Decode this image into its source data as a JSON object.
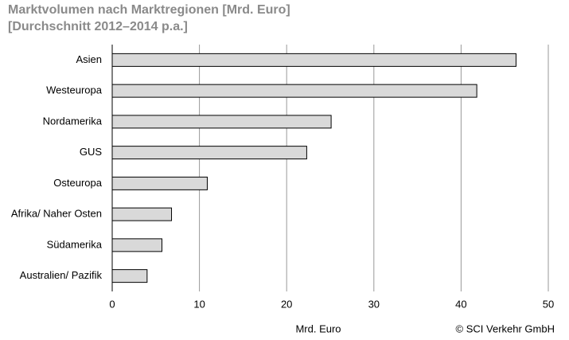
{
  "chart_data": {
    "type": "bar",
    "orientation": "horizontal",
    "title": "Marktvolumen nach Marktregionen [Mrd. Euro]",
    "subtitle": "[Durchschnitt 2012–2014 p.a.]",
    "categories": [
      "Asien",
      "Westeuropa",
      "Nordamerika",
      "GUS",
      "Osteuropa",
      "Afrika/ Naher Osten",
      "Südamerika",
      "Australien/ Pazifik"
    ],
    "values": [
      46.3,
      41.8,
      25.1,
      22.3,
      10.9,
      6.8,
      5.7,
      4.0
    ],
    "color": "#d9d9d9",
    "xlim": [
      0,
      50
    ],
    "xticks": [
      0,
      10,
      20,
      30,
      40,
      50
    ],
    "x_label": "Mrd. Euro",
    "annotation": "© SCI Verkehr GmbH",
    "grid": true
  }
}
